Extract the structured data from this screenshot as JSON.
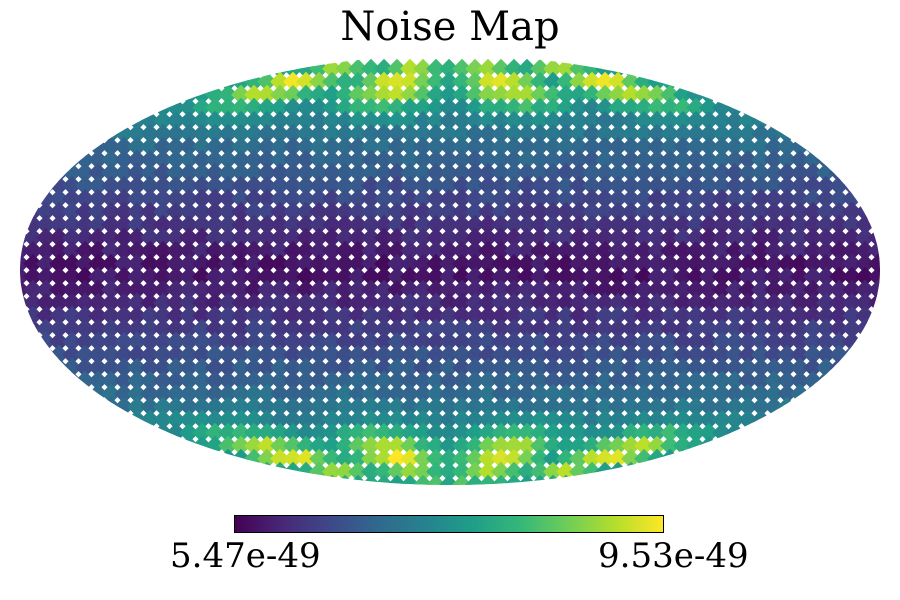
{
  "chart_data": {
    "type": "heatmap",
    "title": "Noise Map",
    "projection": "mollweide",
    "colormap": "viridis",
    "colorbar": {
      "min_label": "5.47e-49",
      "max_label": "9.53e-49",
      "min": 5.47e-49,
      "max": 9.53e-49
    },
    "pattern": {
      "description_values": "low values along equator band, high values (yellow) near poles at four longitudes",
      "equator_value": 5.5e-49,
      "mid_latitude_value": 7e-49,
      "polar_peak_value": 9.5e-49,
      "polar_peak_longitudes_deg": [
        -135,
        -45,
        45,
        135
      ]
    },
    "colors": {
      "low": "#440154",
      "mid": "#21918c",
      "high": "#fde725"
    }
  }
}
